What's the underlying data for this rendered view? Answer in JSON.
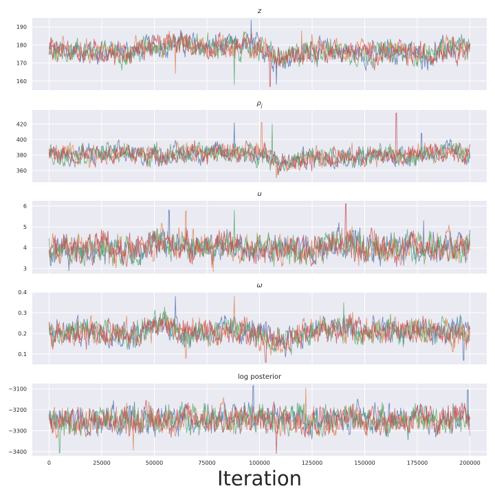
{
  "chart_data": {
    "type": "line",
    "style": "trace-plot, 4 overlaid chains per panel, seaborn darkgrid",
    "grid": true,
    "series_colors": [
      "#4c72b0",
      "#dd8452",
      "#55a868",
      "#c44e52"
    ],
    "background": "#eaeaf2",
    "xlabel": "Iteration",
    "xlim": [
      -8000,
      208000
    ],
    "xticks": [
      0,
      25000,
      50000,
      75000,
      100000,
      125000,
      150000,
      175000,
      200000
    ],
    "panels": [
      {
        "title": "z",
        "title_style": "italic",
        "ylim": [
          155,
          195
        ],
        "yticks": [
          160,
          170,
          180,
          190
        ],
        "center": [
          [
            0,
            177
          ],
          [
            15000,
            177
          ],
          [
            25000,
            176
          ],
          [
            40000,
            176
          ],
          [
            50000,
            180
          ],
          [
            65000,
            181
          ],
          [
            75000,
            179
          ],
          [
            90000,
            179
          ],
          [
            100000,
            179
          ],
          [
            110000,
            172
          ],
          [
            125000,
            177
          ],
          [
            135000,
            177
          ],
          [
            150000,
            175
          ],
          [
            165000,
            176
          ],
          [
            180000,
            174
          ],
          [
            190000,
            179
          ],
          [
            200000,
            177
          ]
        ],
        "spread": 4.5,
        "spikes": [
          [
            96000,
            194
          ],
          [
            60000,
            164
          ],
          [
            88000,
            158
          ],
          [
            105000,
            157
          ],
          [
            108000,
            158
          ],
          [
            120000,
            188
          ]
        ]
      },
      {
        "title": "ρj",
        "title_style": "italic",
        "ylim": [
          345,
          438
        ],
        "yticks": [
          360,
          380,
          400,
          420
        ],
        "center": [
          [
            0,
            380
          ],
          [
            25000,
            382
          ],
          [
            50000,
            380
          ],
          [
            75000,
            383
          ],
          [
            100000,
            382
          ],
          [
            110000,
            370
          ],
          [
            125000,
            377
          ],
          [
            150000,
            378
          ],
          [
            175000,
            380
          ],
          [
            190000,
            386
          ],
          [
            200000,
            380
          ]
        ],
        "spread": 9,
        "spikes": [
          [
            88000,
            422
          ],
          [
            101000,
            422
          ],
          [
            106000,
            420
          ],
          [
            165000,
            434
          ],
          [
            177000,
            408
          ],
          [
            108000,
            350
          ]
        ]
      },
      {
        "title": "u",
        "title_style": "italic",
        "ylim": [
          2.75,
          6.25
        ],
        "yticks": [
          3,
          4,
          5,
          6
        ],
        "center": [
          [
            0,
            3.85
          ],
          [
            25000,
            4.0
          ],
          [
            40000,
            3.9
          ],
          [
            55000,
            4.2
          ],
          [
            65000,
            4.1
          ],
          [
            80000,
            4.0
          ],
          [
            90000,
            4.1
          ],
          [
            100000,
            3.9
          ],
          [
            125000,
            3.9
          ],
          [
            140000,
            4.3
          ],
          [
            150000,
            4.0
          ],
          [
            175000,
            4.0
          ],
          [
            200000,
            4.0
          ]
        ],
        "spread": 0.5,
        "spikes": [
          [
            57000,
            5.8
          ],
          [
            65000,
            5.75
          ],
          [
            88000,
            5.8
          ],
          [
            141000,
            6.1
          ],
          [
            178000,
            5.3
          ],
          [
            78000,
            2.85
          ]
        ]
      },
      {
        "title": "ω",
        "title_style": "italic",
        "ylim": [
          0.05,
          0.4
        ],
        "yticks": [
          0.1,
          0.2,
          0.3,
          0.4
        ],
        "center": [
          [
            0,
            0.21
          ],
          [
            25000,
            0.21
          ],
          [
            40000,
            0.19
          ],
          [
            55000,
            0.25
          ],
          [
            65000,
            0.2
          ],
          [
            80000,
            0.21
          ],
          [
            90000,
            0.22
          ],
          [
            100000,
            0.19
          ],
          [
            110000,
            0.17
          ],
          [
            125000,
            0.21
          ],
          [
            140000,
            0.23
          ],
          [
            150000,
            0.21
          ],
          [
            175000,
            0.21
          ],
          [
            200000,
            0.2
          ]
        ],
        "spread": 0.045,
        "spikes": [
          [
            60000,
            0.38
          ],
          [
            88000,
            0.38
          ],
          [
            140000,
            0.35
          ],
          [
            103000,
            0.06
          ],
          [
            197000,
            0.07
          ],
          [
            65000,
            0.08
          ]
        ]
      },
      {
        "title": "log posterior",
        "title_style": "normal",
        "ylim": [
          -3420,
          -3075
        ],
        "yticks": [
          -3400,
          -3300,
          -3200,
          -3100
        ],
        "center": [
          [
            0,
            -3260
          ],
          [
            25000,
            -3250
          ],
          [
            50000,
            -3245
          ],
          [
            75000,
            -3245
          ],
          [
            100000,
            -3245
          ],
          [
            125000,
            -3250
          ],
          [
            150000,
            -3245
          ],
          [
            175000,
            -3250
          ],
          [
            200000,
            -3245
          ]
        ],
        "spread": 48,
        "spikes": [
          [
            97000,
            -3085
          ],
          [
            122000,
            -3095
          ],
          [
            5000,
            -3405
          ],
          [
            108000,
            -3410
          ],
          [
            199000,
            -3105
          ],
          [
            40000,
            -3395
          ]
        ]
      }
    ]
  }
}
